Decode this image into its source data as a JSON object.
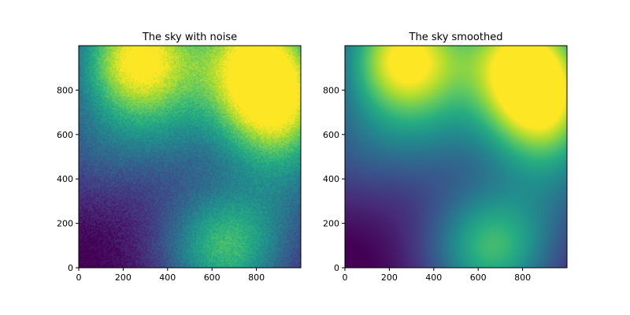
{
  "chart_data": [
    {
      "type": "heatmap",
      "title": "The sky with noise",
      "xlim": [
        0,
        1000
      ],
      "ylim": [
        0,
        1000
      ],
      "xticks": [
        "0",
        "200",
        "400",
        "600",
        "800"
      ],
      "yticks": [
        "0",
        "200",
        "400",
        "600",
        "800"
      ],
      "colormap": "viridis",
      "noise": true,
      "blobs": [
        {
          "x": 270,
          "y": 950,
          "amplitude": 1.0
        },
        {
          "x": 880,
          "y": 720,
          "amplitude": 0.85
        },
        {
          "x": 800,
          "y": 970,
          "amplitude": 0.8
        },
        {
          "x": 660,
          "y": 90,
          "amplitude": 0.65
        },
        {
          "x": 380,
          "y": 620,
          "amplitude": 0.25
        },
        {
          "x": 960,
          "y": 380,
          "amplitude": 0.2
        },
        {
          "x": 40,
          "y": 560,
          "amplitude": 0.2
        }
      ]
    },
    {
      "type": "heatmap",
      "title": "The sky smoothed",
      "xlim": [
        0,
        1000
      ],
      "ylim": [
        0,
        1000
      ],
      "xticks": [
        "0",
        "200",
        "400",
        "600",
        "800"
      ],
      "yticks": [
        "0",
        "200",
        "400",
        "600",
        "800"
      ],
      "colormap": "viridis",
      "noise": false,
      "blobs": [
        {
          "x": 270,
          "y": 950,
          "amplitude": 1.0
        },
        {
          "x": 880,
          "y": 720,
          "amplitude": 0.85
        },
        {
          "x": 800,
          "y": 970,
          "amplitude": 0.8
        },
        {
          "x": 660,
          "y": 90,
          "amplitude": 0.65
        },
        {
          "x": 380,
          "y": 620,
          "amplitude": 0.25
        },
        {
          "x": 960,
          "y": 380,
          "amplitude": 0.2
        },
        {
          "x": 40,
          "y": 560,
          "amplitude": 0.2
        }
      ]
    }
  ]
}
